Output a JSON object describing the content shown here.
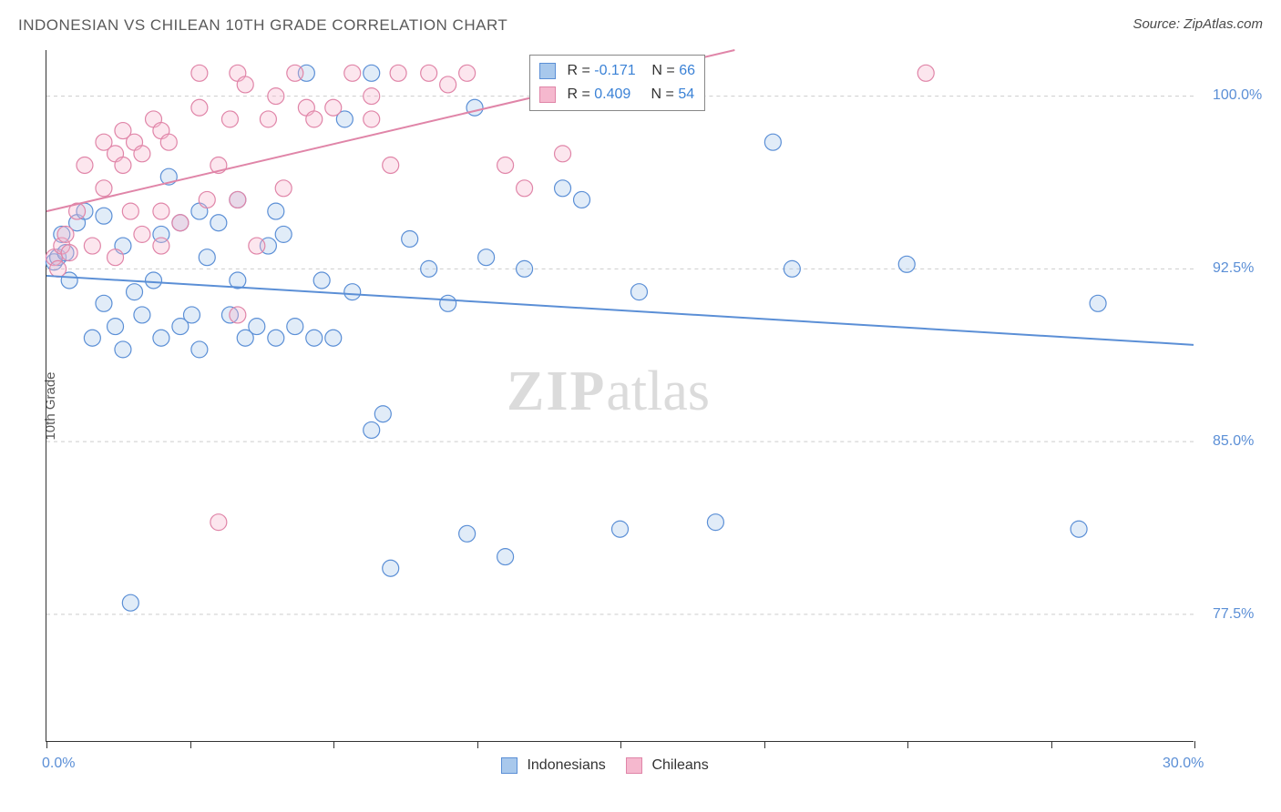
{
  "title": "INDONESIAN VS CHILEAN 10TH GRADE CORRELATION CHART",
  "source": "Source: ZipAtlas.com",
  "ylabel": "10th Grade",
  "watermark_zip": "ZIP",
  "watermark_atlas": "atlas",
  "chart": {
    "type": "scatter",
    "xlim": [
      0,
      30
    ],
    "ylim": [
      72,
      102
    ],
    "background_color": "#ffffff",
    "grid_color": "#cccccc",
    "axis_color": "#333333",
    "tick_label_color": "#5b8fd6",
    "y_gridlines": [
      77.5,
      85.0,
      92.5,
      100.0
    ],
    "y_tick_labels": [
      "77.5%",
      "85.0%",
      "92.5%",
      "100.0%"
    ],
    "x_tick_positions": [
      0,
      3.75,
      7.5,
      11.25,
      15,
      18.75,
      22.5,
      26.25,
      30
    ],
    "x_left_label": "0.0%",
    "x_right_label": "30.0%",
    "marker_radius": 9,
    "marker_fill_opacity": 0.35,
    "line_width": 2,
    "series": [
      {
        "name": "Indonesians",
        "color": "#5b8fd6",
        "fill": "#a8c8ec",
        "r_value": "-0.171",
        "n_value": "66",
        "trend": {
          "x1": 0,
          "y1": 92.2,
          "x2": 30,
          "y2": 89.2
        },
        "points": [
          [
            0.2,
            92.8
          ],
          [
            0.3,
            93.0
          ],
          [
            0.4,
            94.0
          ],
          [
            0.5,
            93.2
          ],
          [
            0.6,
            92.0
          ],
          [
            0.8,
            94.5
          ],
          [
            1.0,
            95.0
          ],
          [
            1.2,
            89.5
          ],
          [
            1.5,
            91.0
          ],
          [
            1.5,
            94.8
          ],
          [
            1.8,
            90.0
          ],
          [
            2.0,
            89.0
          ],
          [
            2.0,
            93.5
          ],
          [
            2.2,
            78.0
          ],
          [
            2.3,
            91.5
          ],
          [
            2.5,
            90.5
          ],
          [
            2.8,
            92.0
          ],
          [
            3.0,
            94.0
          ],
          [
            3.0,
            89.5
          ],
          [
            3.2,
            96.5
          ],
          [
            3.5,
            90.0
          ],
          [
            3.5,
            94.5
          ],
          [
            3.8,
            90.5
          ],
          [
            4.0,
            95.0
          ],
          [
            4.0,
            89.0
          ],
          [
            4.2,
            93.0
          ],
          [
            4.5,
            94.5
          ],
          [
            4.8,
            90.5
          ],
          [
            5.0,
            95.5
          ],
          [
            5.0,
            92.0
          ],
          [
            5.2,
            89.5
          ],
          [
            5.5,
            90.0
          ],
          [
            5.8,
            93.5
          ],
          [
            6.0,
            95.0
          ],
          [
            6.0,
            89.5
          ],
          [
            6.2,
            94.0
          ],
          [
            6.5,
            90.0
          ],
          [
            6.8,
            101.0
          ],
          [
            7.0,
            89.5
          ],
          [
            7.2,
            92.0
          ],
          [
            7.5,
            89.5
          ],
          [
            7.8,
            99.0
          ],
          [
            8.0,
            91.5
          ],
          [
            8.5,
            85.5
          ],
          [
            8.5,
            101.0
          ],
          [
            8.8,
            86.2
          ],
          [
            9.0,
            79.5
          ],
          [
            9.5,
            93.8
          ],
          [
            10.0,
            92.5
          ],
          [
            10.5,
            91.0
          ],
          [
            11.0,
            81.0
          ],
          [
            11.2,
            99.5
          ],
          [
            11.5,
            93.0
          ],
          [
            12.0,
            80.0
          ],
          [
            12.5,
            92.5
          ],
          [
            13.0,
            101.0
          ],
          [
            13.5,
            96.0
          ],
          [
            14.0,
            95.5
          ],
          [
            15.0,
            81.2
          ],
          [
            15.5,
            91.5
          ],
          [
            17.5,
            81.5
          ],
          [
            19.0,
            98.0
          ],
          [
            19.5,
            92.5
          ],
          [
            22.5,
            92.7
          ],
          [
            27.5,
            91.0
          ],
          [
            27.0,
            81.2
          ]
        ]
      },
      {
        "name": "Chileans",
        "color": "#e085a8",
        "fill": "#f5b8ce",
        "r_value": "0.409",
        "n_value": "54",
        "trend": {
          "x1": 0,
          "y1": 95.0,
          "x2": 18,
          "y2": 102.0
        },
        "points": [
          [
            0.2,
            93.0
          ],
          [
            0.3,
            92.5
          ],
          [
            0.4,
            93.5
          ],
          [
            0.5,
            94.0
          ],
          [
            0.6,
            93.2
          ],
          [
            0.8,
            95.0
          ],
          [
            1.0,
            97.0
          ],
          [
            1.2,
            93.5
          ],
          [
            1.5,
            98.0
          ],
          [
            1.5,
            96.0
          ],
          [
            1.8,
            97.5
          ],
          [
            1.8,
            93.0
          ],
          [
            2.0,
            98.5
          ],
          [
            2.0,
            97.0
          ],
          [
            2.2,
            95.0
          ],
          [
            2.3,
            98.0
          ],
          [
            2.5,
            97.5
          ],
          [
            2.5,
            94.0
          ],
          [
            2.8,
            99.0
          ],
          [
            3.0,
            98.5
          ],
          [
            3.0,
            95.0
          ],
          [
            3.0,
            93.5
          ],
          [
            3.2,
            98.0
          ],
          [
            3.5,
            94.5
          ],
          [
            4.0,
            101.0
          ],
          [
            4.0,
            99.5
          ],
          [
            4.2,
            95.5
          ],
          [
            4.5,
            81.5
          ],
          [
            4.5,
            97.0
          ],
          [
            4.8,
            99.0
          ],
          [
            5.0,
            101.0
          ],
          [
            5.0,
            95.5
          ],
          [
            5.0,
            90.5
          ],
          [
            5.2,
            100.5
          ],
          [
            5.5,
            93.5
          ],
          [
            5.8,
            99.0
          ],
          [
            6.0,
            100.0
          ],
          [
            6.2,
            96.0
          ],
          [
            6.5,
            101.0
          ],
          [
            6.8,
            99.5
          ],
          [
            7.0,
            99.0
          ],
          [
            7.5,
            99.5
          ],
          [
            8.0,
            101.0
          ],
          [
            8.5,
            100.0
          ],
          [
            8.5,
            99.0
          ],
          [
            9.0,
            97.0
          ],
          [
            9.2,
            101.0
          ],
          [
            10.0,
            101.0
          ],
          [
            10.5,
            100.5
          ],
          [
            11.0,
            101.0
          ],
          [
            12.0,
            97.0
          ],
          [
            12.5,
            96.0
          ],
          [
            13.5,
            97.5
          ],
          [
            23.0,
            101.0
          ]
        ]
      }
    ]
  },
  "statbox": {
    "r_label": "R =",
    "n_label": "N ="
  },
  "bottom_legend": {
    "items": [
      "Indonesians",
      "Chileans"
    ]
  }
}
